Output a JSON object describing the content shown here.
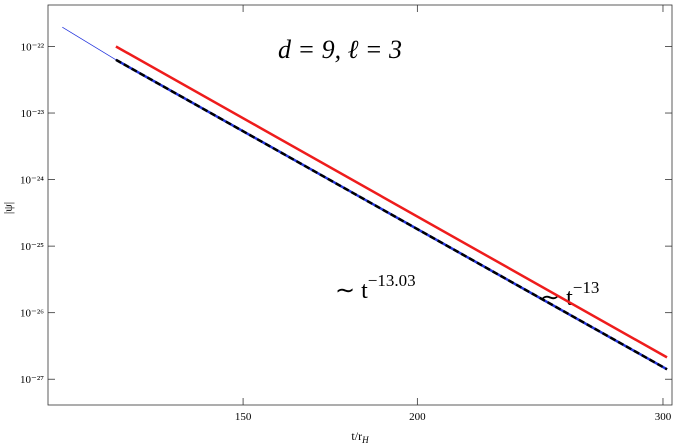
{
  "chart_data": {
    "type": "line",
    "title": "d = 9,  ℓ = 3",
    "x_label": {
      "base": "t/r",
      "subscript": "H"
    },
    "y_label": "|ψ|",
    "log_x": true,
    "log_y": true,
    "xlim": [
      108.7,
      304.5
    ],
    "ylim": [
      4.1e-28,
      4.2e-22
    ],
    "xticks": [
      150,
      200,
      300
    ],
    "yticks": [
      {
        "value": 1e-22,
        "label": "10⁻²²"
      },
      {
        "value": 1e-23,
        "label": "10⁻²³"
      },
      {
        "value": 1e-24,
        "label": "10⁻²⁴"
      },
      {
        "value": 1e-25,
        "label": "10⁻²⁵"
      },
      {
        "value": 1e-26,
        "label": "10⁻²⁶"
      },
      {
        "value": 1e-27,
        "label": "10⁻²⁷"
      }
    ],
    "series": [
      {
        "color": "#2233dd",
        "style": "solid",
        "width": 0.8,
        "x": [
          111.3,
          121.6,
          302
        ],
        "values": [
          1.95e-22,
          6.3e-23,
          1.41e-27
        ]
      },
      {
        "color": "#000000",
        "style": "dashed",
        "width": 2.5,
        "x": [
          121.6,
          302
        ],
        "values": [
          6.3e-23,
          1.41e-27
        ]
      },
      {
        "color": "#ee1c1c",
        "style": "solid",
        "width": 2.5,
        "x": [
          121.6,
          302
        ],
        "values": [
          1e-22,
          2.13e-27
        ]
      }
    ],
    "annotations": [
      {
        "base": "∼ t",
        "exponent": "−13.03"
      },
      {
        "base": "∼ t",
        "exponent": "−13"
      }
    ]
  }
}
